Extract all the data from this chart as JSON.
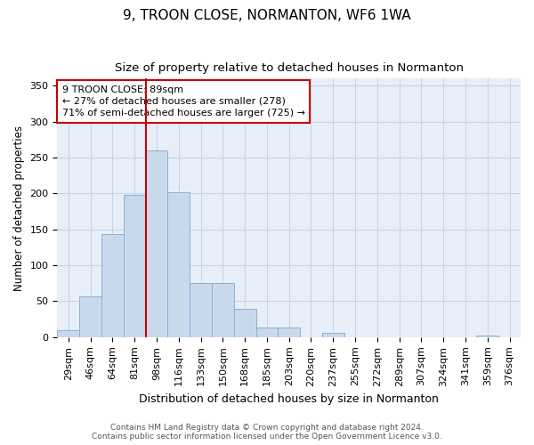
{
  "title": "9, TROON CLOSE, NORMANTON, WF6 1WA",
  "subtitle": "Size of property relative to detached houses in Normanton",
  "xlabel": "Distribution of detached houses by size in Normanton",
  "ylabel": "Number of detached properties",
  "bar_labels": [
    "29sqm",
    "46sqm",
    "64sqm",
    "81sqm",
    "98sqm",
    "116sqm",
    "133sqm",
    "150sqm",
    "168sqm",
    "185sqm",
    "203sqm",
    "220sqm",
    "237sqm",
    "255sqm",
    "272sqm",
    "289sqm",
    "307sqm",
    "324sqm",
    "341sqm",
    "359sqm",
    "376sqm"
  ],
  "bar_values": [
    10,
    57,
    143,
    198,
    260,
    202,
    75,
    75,
    40,
    13,
    13,
    0,
    6,
    0,
    0,
    0,
    0,
    0,
    0,
    2,
    0
  ],
  "bar_color": "#c9d9ec",
  "bar_edge_color": "#8ab0d4",
  "vline_x_idx": 4,
  "vline_color": "#cc0000",
  "annotation_line1": "9 TROON CLOSE: 89sqm",
  "annotation_line2": "← 27% of detached houses are smaller (278)",
  "annotation_line3": "71% of semi-detached houses are larger (725) →",
  "annotation_box_color": "white",
  "annotation_box_edge_color": "#cc0000",
  "ylim": [
    0,
    360
  ],
  "yticks": [
    0,
    50,
    100,
    150,
    200,
    250,
    300,
    350
  ],
  "grid_color": "#c8d4e8",
  "background_color": "#e8eef8",
  "footer_text": "Contains HM Land Registry data © Crown copyright and database right 2024.\nContains public sector information licensed under the Open Government Licence v3.0.",
  "title_fontsize": 11,
  "subtitle_fontsize": 9.5,
  "xlabel_fontsize": 9,
  "ylabel_fontsize": 8.5,
  "tick_fontsize": 8,
  "annotation_fontsize": 8,
  "footer_fontsize": 6.5
}
